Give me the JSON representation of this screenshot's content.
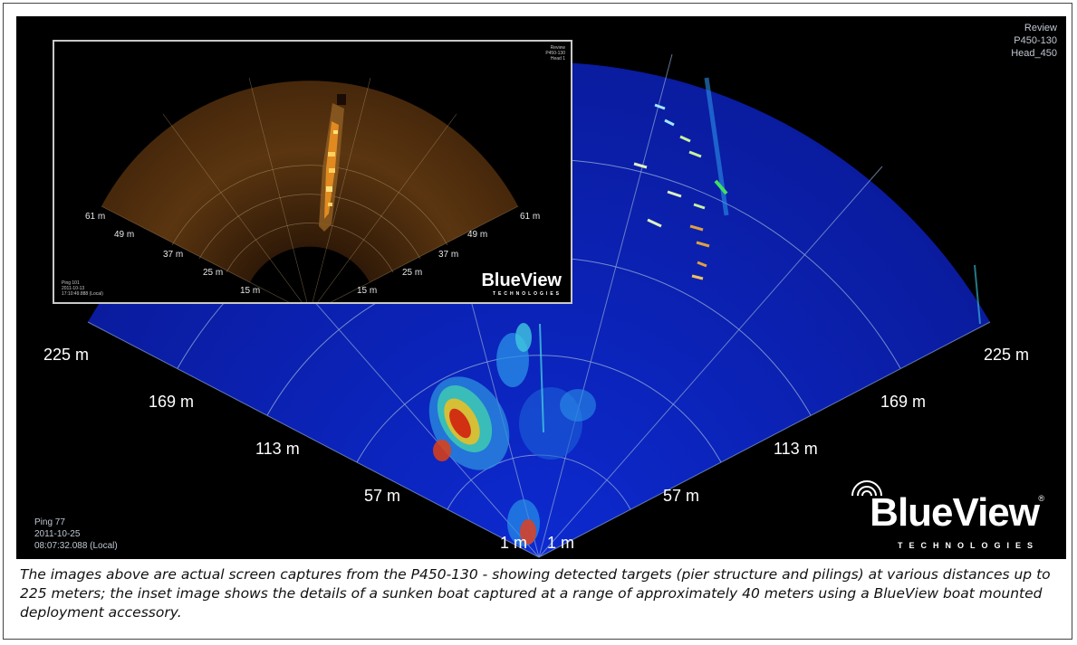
{
  "main_display": {
    "header": [
      "Review",
      "P450-130",
      "Head_450"
    ],
    "footer": [
      "Ping 77",
      "2011-10-25",
      "08:07:32.088 (Local)"
    ],
    "range_labels": {
      "left": [
        "225 m",
        "169 m",
        "113 m",
        "57 m",
        "1 m"
      ],
      "right": [
        "225 m",
        "169 m",
        "113 m",
        "57 m",
        "1 m"
      ]
    },
    "logo": {
      "name": "BlueView",
      "sub": "TECHNOLOGIES",
      "reg": "®"
    },
    "colors": {
      "background": "#000000",
      "fan": "#0a1fb4",
      "grid": "#8fa6d8"
    }
  },
  "inset_display": {
    "header": [
      "Review",
      "P450-130",
      "Head 1"
    ],
    "footer": [
      "Ping 101",
      "2011-10-13",
      "17:10:49.888 (Local)"
    ],
    "range_labels": {
      "left": [
        "61 m",
        "49 m",
        "37 m",
        "25 m",
        "15 m"
      ],
      "right": [
        "61 m",
        "49 m",
        "37 m",
        "25 m",
        "15 m"
      ]
    },
    "logo": {
      "name": "BlueView",
      "sub": "TECHNOLOGIES"
    },
    "colors": {
      "fan": "#5a3510",
      "highlight": "#ffb030"
    }
  },
  "caption": "The images above are actual screen captures from the P450-130 - showing detected targets (pier structure and pilings) at various distances up to 225 meters; the inset image shows the details of a sunken boat captured at a range of approximately 40 meters using a BlueView boat mounted deployment accessory."
}
